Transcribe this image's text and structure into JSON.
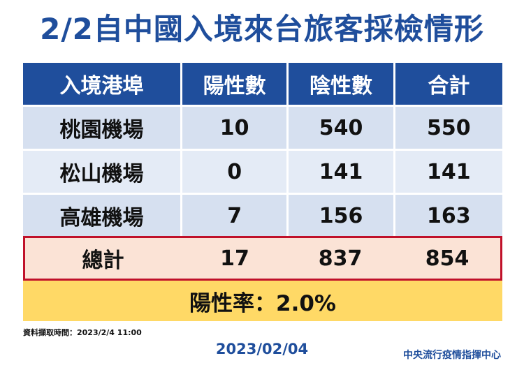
{
  "title": "2/2自中國入境來台旅客採檢情形",
  "table": {
    "headers": [
      "入境港埠",
      "陽性數",
      "陰性數",
      "合計"
    ],
    "rows": [
      [
        "桃園機場",
        "10",
        "540",
        "550"
      ],
      [
        "松山機場",
        "0",
        "141",
        "141"
      ],
      [
        "高雄機場",
        "7",
        "156",
        "163"
      ]
    ],
    "total": [
      "總計",
      "17",
      "837",
      "854"
    ]
  },
  "positive_rate": "陽性率：2.0%",
  "data_note": "資料擷取時間：2023/2/4 11:00",
  "date": "2023/02/04",
  "organization": "中央流行疫情指揮中心",
  "colors": {
    "title": "#1f4e9c",
    "header_bg": "#1f4e9c",
    "row_bg": "#d6e0f0",
    "total_border": "#c0112a",
    "total_bg": "#fbe3d6",
    "rate_bg": "#ffd966"
  }
}
